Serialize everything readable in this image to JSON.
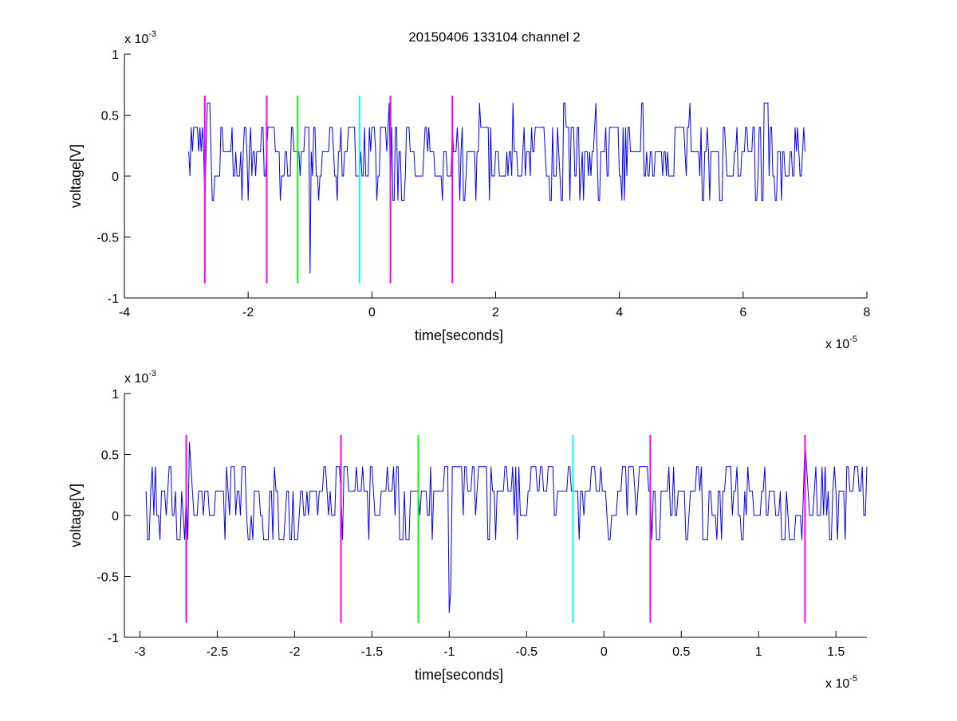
{
  "figure": {
    "title": "20150406 133104 channel 2"
  },
  "chart_data": [
    {
      "type": "line",
      "title": "20150406 133104 channel 2",
      "xlabel": "time[seconds]",
      "ylabel": "voltage[V]",
      "x_multiplier": "x 10",
      "x_multiplier_exp": "-5",
      "y_multiplier": "x 10",
      "y_multiplier_exp": "-3",
      "xlim": [
        -4,
        8
      ],
      "ylim": [
        -1,
        1
      ],
      "xticks": [
        -4,
        -2,
        0,
        2,
        4,
        6,
        8
      ],
      "xtick_labels": [
        "-4",
        "-2",
        "0",
        "2",
        "4",
        "6",
        "8"
      ],
      "yticks": [
        -1,
        -0.5,
        0,
        0.5,
        1
      ],
      "ytick_labels": [
        "-1",
        "-0.5",
        "0",
        "0.5",
        "1"
      ],
      "grid": false,
      "signal": {
        "color": "#0000ff",
        "x_start": -2.96,
        "x_end": 7.0,
        "dx": 0.02,
        "noise_levels": [
          -0.2,
          0,
          0.2,
          0.4
        ],
        "spikes": [
          {
            "x": -2.66,
            "y": 0.6
          },
          {
            "x": -1.0,
            "y": -0.8
          },
          {
            "x": 0.28,
            "y": 0.6
          },
          {
            "x": 1.74,
            "y": 0.6
          },
          {
            "x": 2.28,
            "y": 0.6
          },
          {
            "x": 3.1,
            "y": 0.6
          },
          {
            "x": 3.62,
            "y": 0.6
          },
          {
            "x": 4.36,
            "y": 0.6
          },
          {
            "x": 5.14,
            "y": 0.6
          },
          {
            "x": 6.34,
            "y": 0.6
          },
          {
            "x": 6.3,
            "y": -0.2
          }
        ]
      },
      "markers": [
        {
          "x": -2.7,
          "y_range": [
            -0.88,
            0.66
          ],
          "color": "#ff00ff"
        },
        {
          "x": -1.7,
          "y_range": [
            -0.88,
            0.66
          ],
          "color": "#ff00ff"
        },
        {
          "x": -1.2,
          "y_range": [
            -0.88,
            0.66
          ],
          "color": "#00ff00"
        },
        {
          "x": -0.2,
          "y_range": [
            -0.88,
            0.66
          ],
          "color": "#00ffff"
        },
        {
          "x": 0.3,
          "y_range": [
            -0.88,
            0.66
          ],
          "color": "#ff00ff"
        },
        {
          "x": 1.3,
          "y_range": [
            -0.88,
            0.66
          ],
          "color": "#ff00ff"
        }
      ]
    },
    {
      "type": "line",
      "title": "",
      "xlabel": "time[seconds]",
      "ylabel": "voltage[V]",
      "x_multiplier": "x 10",
      "x_multiplier_exp": "-5",
      "y_multiplier": "x 10",
      "y_multiplier_exp": "-3",
      "xlim": [
        -3.1,
        1.7
      ],
      "ylim": [
        -1,
        1
      ],
      "xticks": [
        -3,
        -2.5,
        -2,
        -1.5,
        -1,
        -0.5,
        0,
        0.5,
        1,
        1.5
      ],
      "xtick_labels": [
        "-3",
        "-2.5",
        "-2",
        "-1.5",
        "-1",
        "-0.5",
        "0",
        "0.5",
        "1",
        "1.5"
      ],
      "yticks": [
        -1,
        -0.5,
        0,
        0.5,
        1
      ],
      "ytick_labels": [
        "-1",
        "-0.5",
        "0",
        "0.5",
        "1"
      ],
      "grid": false,
      "signal": {
        "color": "#0000ff",
        "x_start": -2.96,
        "x_end": 1.7,
        "dx": 0.01,
        "noise_levels": [
          -0.2,
          0,
          0.2,
          0.4
        ],
        "spikes": [
          {
            "x": -2.68,
            "y": 0.6
          },
          {
            "x": -1.0,
            "y": -0.8
          },
          {
            "x": -0.99,
            "y": -0.6
          },
          {
            "x": 1.3,
            "y": 0.6
          },
          {
            "x": -1.5,
            "y": 0.4
          },
          {
            "x": -0.23,
            "y": 0.4
          }
        ]
      },
      "markers": [
        {
          "x": -2.7,
          "y_range": [
            -0.88,
            0.66
          ],
          "color": "#ff00ff"
        },
        {
          "x": -1.7,
          "y_range": [
            -0.88,
            0.66
          ],
          "color": "#ff00ff"
        },
        {
          "x": -1.2,
          "y_range": [
            -0.88,
            0.66
          ],
          "color": "#00ff00"
        },
        {
          "x": -0.2,
          "y_range": [
            -0.88,
            0.66
          ],
          "color": "#00ffff"
        },
        {
          "x": 0.3,
          "y_range": [
            -0.88,
            0.66
          ],
          "color": "#ff00ff"
        },
        {
          "x": 1.3,
          "y_range": [
            -0.88,
            0.66
          ],
          "color": "#ff00ff"
        }
      ]
    }
  ]
}
